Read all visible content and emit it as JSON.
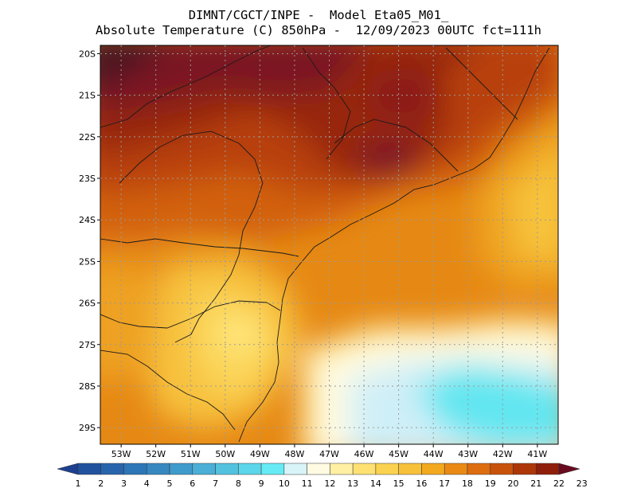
{
  "header": {
    "line1": "DIMNT/CGCT/INPE -  Model Eta05_M01_",
    "line2": "Absolute Temperature (C) 850hPa -  12/09/2023 00UTC fct=111h"
  },
  "map": {
    "lat_ticks": [
      "20S",
      "21S",
      "22S",
      "23S",
      "24S",
      "25S",
      "26S",
      "27S",
      "28S",
      "29S"
    ],
    "lon_ticks": [
      "53W",
      "52W",
      "51W",
      "50W",
      "49W",
      "48W",
      "47W",
      "46W",
      "45W",
      "44W",
      "43W",
      "42W",
      "41W"
    ],
    "lon_range": [
      -53.6,
      -40.4
    ],
    "lat_range": [
      -29.4,
      -19.8
    ],
    "grid": "dotted"
  },
  "colorbar": {
    "labels": [
      "1",
      "2",
      "3",
      "4",
      "5",
      "6",
      "7",
      "8",
      "9",
      "10",
      "11",
      "12",
      "13",
      "14",
      "15",
      "16",
      "17",
      "18",
      "19",
      "20",
      "21",
      "22",
      "23"
    ],
    "colors": [
      "#1d3f8f",
      "#21529e",
      "#2764ab",
      "#2d76b7",
      "#3788c1",
      "#3f9bcb",
      "#4bafd6",
      "#52c2df",
      "#5cd6ea",
      "#66ebf4",
      "#d8f4f9",
      "#fffbe2",
      "#fff0a3",
      "#ffe173",
      "#fbd250",
      "#f8c13a",
      "#f3a91f",
      "#ea8a15",
      "#dd6d0f",
      "#c9520a",
      "#ae3707",
      "#8f1f0a",
      "#6a0a1f"
    ]
  }
}
